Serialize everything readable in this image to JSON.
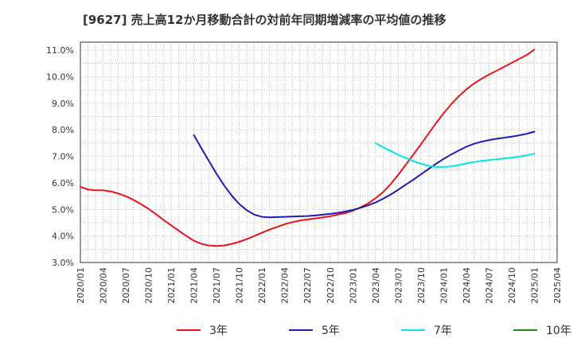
{
  "chart_data": {
    "type": "line",
    "title": "[9627]  売上高12か月移動合計の対前年同期増減率の平均値の推移",
    "xlabel": "",
    "ylabel": "",
    "ylim": [
      3.0,
      11.3
    ],
    "yticks": [
      3.0,
      4.0,
      5.0,
      6.0,
      7.0,
      8.0,
      9.0,
      10.0,
      11.0
    ],
    "ytick_labels": [
      "3.0%",
      "4.0%",
      "5.0%",
      "6.0%",
      "7.0%",
      "8.0%",
      "9.0%",
      "10.0%",
      "11.0%"
    ],
    "xlim": [
      "2020-01",
      "2025-04"
    ],
    "xticks": [
      "2020/01",
      "2020/04",
      "2020/07",
      "2020/10",
      "2021/01",
      "2021/04",
      "2021/07",
      "2021/10",
      "2022/01",
      "2022/04",
      "2022/07",
      "2022/10",
      "2023/01",
      "2023/04",
      "2023/07",
      "2023/10",
      "2024/01",
      "2024/04",
      "2024/07",
      "2024/10",
      "2025/01",
      "2025/04"
    ],
    "grid": true,
    "legend_position": "bottom",
    "series": [
      {
        "name": "3年",
        "color": "#e8141a",
        "x": [
          "2020-01",
          "2020-02",
          "2020-03",
          "2020-04",
          "2020-05",
          "2020-06",
          "2020-07",
          "2020-08",
          "2020-09",
          "2020-10",
          "2020-11",
          "2020-12",
          "2021-01",
          "2021-02",
          "2021-03",
          "2021-04",
          "2021-05",
          "2021-06",
          "2021-07",
          "2021-08",
          "2021-09",
          "2021-10",
          "2021-11",
          "2021-12",
          "2022-01",
          "2022-02",
          "2022-03",
          "2022-04",
          "2022-05",
          "2022-06",
          "2022-07",
          "2022-08",
          "2022-09",
          "2022-10",
          "2022-11",
          "2022-12",
          "2023-01",
          "2023-02",
          "2023-03",
          "2023-04",
          "2023-05",
          "2023-06",
          "2023-07",
          "2023-08",
          "2023-09",
          "2023-10",
          "2023-11",
          "2023-12",
          "2024-01",
          "2024-02",
          "2024-03",
          "2024-04",
          "2024-05",
          "2024-06",
          "2024-07",
          "2024-08",
          "2024-09",
          "2024-10",
          "2024-11",
          "2024-12",
          "2025-01"
        ],
        "values": [
          5.85,
          5.75,
          5.72,
          5.72,
          5.68,
          5.6,
          5.5,
          5.36,
          5.2,
          5.02,
          4.82,
          4.6,
          4.4,
          4.2,
          4.0,
          3.82,
          3.7,
          3.64,
          3.62,
          3.64,
          3.7,
          3.78,
          3.88,
          4.0,
          4.12,
          4.24,
          4.34,
          4.44,
          4.52,
          4.58,
          4.62,
          4.66,
          4.7,
          4.74,
          4.8,
          4.86,
          4.95,
          5.08,
          5.22,
          5.42,
          5.65,
          5.95,
          6.3,
          6.68,
          7.06,
          7.45,
          7.85,
          8.25,
          8.62,
          8.96,
          9.26,
          9.52,
          9.74,
          9.92,
          10.08,
          10.22,
          10.37,
          10.52,
          10.67,
          10.82,
          11.02
        ]
      },
      {
        "name": "5年",
        "color": "#1c1cb4",
        "x": [
          "2021-04",
          "2021-05",
          "2021-06",
          "2021-07",
          "2021-08",
          "2021-09",
          "2021-10",
          "2021-11",
          "2021-12",
          "2022-01",
          "2022-02",
          "2022-03",
          "2022-04",
          "2022-05",
          "2022-06",
          "2022-07",
          "2022-08",
          "2022-09",
          "2022-10",
          "2022-11",
          "2022-12",
          "2023-01",
          "2023-02",
          "2023-03",
          "2023-04",
          "2023-05",
          "2023-06",
          "2023-07",
          "2023-08",
          "2023-09",
          "2023-10",
          "2023-11",
          "2023-12",
          "2024-01",
          "2024-02",
          "2024-03",
          "2024-04",
          "2024-05",
          "2024-06",
          "2024-07",
          "2024-08",
          "2024-09",
          "2024-10",
          "2024-11",
          "2024-12",
          "2025-01"
        ],
        "values": [
          7.8,
          7.3,
          6.82,
          6.34,
          5.9,
          5.52,
          5.2,
          4.97,
          4.8,
          4.72,
          4.7,
          4.71,
          4.72,
          4.73,
          4.74,
          4.75,
          4.77,
          4.8,
          4.83,
          4.87,
          4.92,
          4.98,
          5.06,
          5.15,
          5.26,
          5.4,
          5.56,
          5.74,
          5.93,
          6.12,
          6.32,
          6.52,
          6.72,
          6.9,
          7.07,
          7.22,
          7.36,
          7.47,
          7.55,
          7.61,
          7.66,
          7.7,
          7.74,
          7.79,
          7.85,
          7.93
        ]
      },
      {
        "name": "7年",
        "color": "#00e5ee",
        "x": [
          "2023-04",
          "2023-05",
          "2023-06",
          "2023-07",
          "2023-08",
          "2023-09",
          "2023-10",
          "2023-11",
          "2023-12",
          "2024-01",
          "2024-02",
          "2024-03",
          "2024-04",
          "2024-05",
          "2024-06",
          "2024-07",
          "2024-08",
          "2024-09",
          "2024-10",
          "2024-11",
          "2024-12",
          "2025-01"
        ],
        "values": [
          7.5,
          7.34,
          7.2,
          7.06,
          6.94,
          6.82,
          6.72,
          6.64,
          6.6,
          6.6,
          6.62,
          6.67,
          6.73,
          6.78,
          6.83,
          6.86,
          6.89,
          6.92,
          6.95,
          6.99,
          7.04,
          7.1
        ]
      },
      {
        "name": "10年",
        "color": "#1a8a1a",
        "x": [],
        "values": []
      }
    ]
  }
}
